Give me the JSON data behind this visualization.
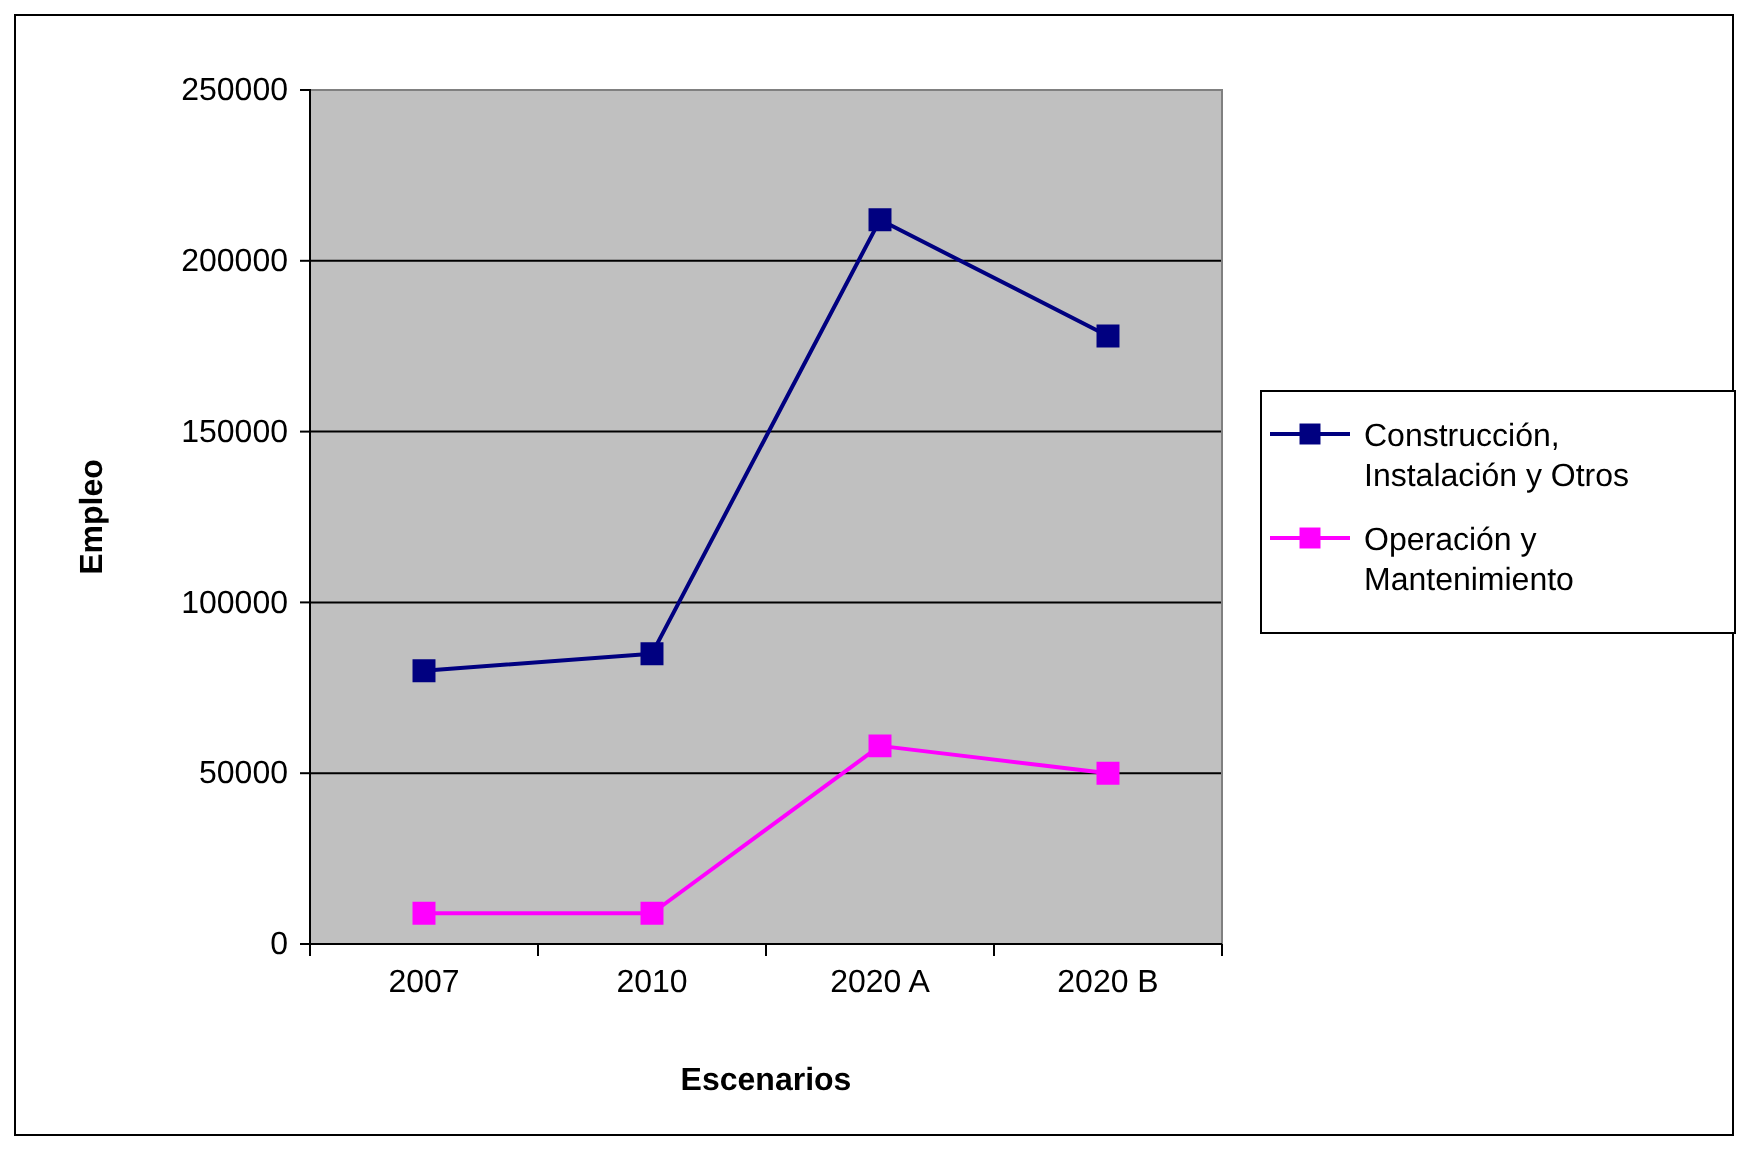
{
  "chart_data": {
    "type": "line",
    "xlabel": "Escenarios",
    "ylabel": "Empleo",
    "categories": [
      "2007",
      "2010",
      "2020 A",
      "2020 B"
    ],
    "series": [
      {
        "name": "Construcción, Instalación y Otros",
        "color": "#000080",
        "values": [
          80000,
          85000,
          212000,
          178000
        ]
      },
      {
        "name": "Operación y Mantenimiento",
        "color": "#ff00ff",
        "values": [
          9000,
          9000,
          58000,
          50000
        ]
      }
    ],
    "ylim": [
      0,
      250000
    ],
    "yticks": [
      0,
      50000,
      100000,
      150000,
      200000,
      250000
    ],
    "grid": "y",
    "legend": "right",
    "marker": "square",
    "line_style": "solid"
  }
}
